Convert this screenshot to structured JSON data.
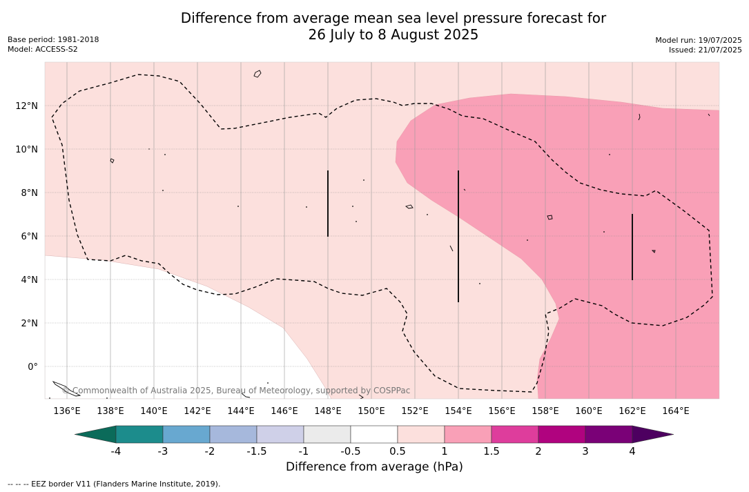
{
  "title_line1": "Difference from average mean sea level pressure forecast for",
  "title_line2": "26 July to 8 August 2025",
  "meta_left": {
    "base_period": "Base period: 1981-2018",
    "model": "Model: ACCESS-S2"
  },
  "meta_right": {
    "model_run": "Model run: 19/07/2025",
    "issued": "Issued: 21/07/2025"
  },
  "map": {
    "lon_ticks": [
      "136°E",
      "138°E",
      "140°E",
      "142°E",
      "144°E",
      "146°E",
      "148°E",
      "150°E",
      "152°E",
      "154°E",
      "156°E",
      "158°E",
      "160°E",
      "162°E",
      "164°E"
    ],
    "lat_ticks": [
      "12°N",
      "10°N",
      "8°N",
      "6°N",
      "4°N",
      "2°N",
      "0°"
    ],
    "copyright": "© Commonwealth of Australia 2025, Bureau of Meteorology, supported by COSPPac",
    "fill_colors": {
      "pale_pink": "#fce0dd",
      "pink": "#f9a0b7",
      "white": "#ffffff"
    }
  },
  "colorbar": {
    "title": "Difference from average (hPa)",
    "labels": [
      "-4",
      "-3",
      "-2",
      "-1.5",
      "-1",
      "-0.5",
      "0.5",
      "1",
      "1.5",
      "2",
      "3",
      "4"
    ],
    "colors": [
      "#1c8c8c",
      "#68a8d0",
      "#a6b8dc",
      "#cfd0e8",
      "#ebebeb",
      "#ffffff",
      "#fce0dd",
      "#f9a0b7",
      "#de3d9c",
      "#b0037f",
      "#7a0177"
    ],
    "under_color": "#0b6b5a",
    "over_color": "#4d0060"
  },
  "footer": "--  --  -- EEZ border V11 (Flanders Marine Institute, 2019)."
}
